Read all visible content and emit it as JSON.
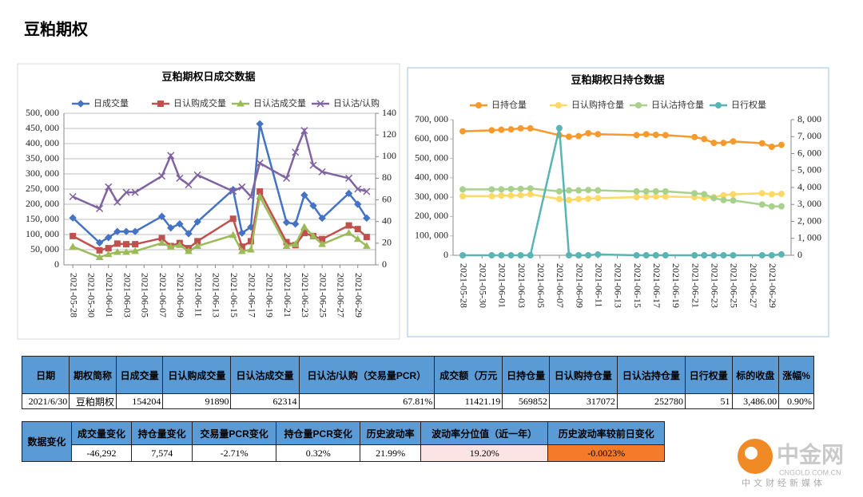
{
  "title": "豆粕期权",
  "chart_data": [
    {
      "type": "line",
      "title": "豆粕期权日成交数据",
      "grid": true,
      "legend": "top",
      "x": [
        "2021-05-28",
        "2021-05-31",
        "2021-06-01",
        "2021-06-02",
        "2021-06-03",
        "2021-06-04",
        "2021-06-07",
        "2021-06-08",
        "2021-06-09",
        "2021-06-10",
        "2021-06-11",
        "2021-06-15",
        "2021-06-16",
        "2021-06-17",
        "2021-06-18",
        "2021-06-21",
        "2021-06-22",
        "2021-06-23",
        "2021-06-24",
        "2021-06-25",
        "2021-06-28",
        "2021-06-29",
        "2021-06-30"
      ],
      "xlim": [
        "2021-05-27",
        "2021-07-01"
      ],
      "xticks": [
        "2021-05-28",
        "2021-05-30",
        "2021-06-01",
        "2021-06-03",
        "2021-06-05",
        "2021-06-07",
        "2021-06-09",
        "2021-06-11",
        "2021-06-13",
        "2021-06-15",
        "2021-06-17",
        "2021-06-19",
        "2021-06-21",
        "2021-06-23",
        "2021-06-25",
        "2021-06-27",
        "2021-06-29"
      ],
      "ylim": [
        0,
        500000
      ],
      "yticks": [
        0,
        {
          "value": 50000,
          "label": "50, 000"
        },
        {
          "value": 100000,
          "label": "100, 000"
        },
        {
          "value": 150000,
          "label": "150, 000"
        },
        {
          "value": 200000,
          "label": "200, 000"
        },
        {
          "value": 250000,
          "label": "250, 000"
        },
        {
          "value": 300000,
          "label": "300, 000"
        },
        {
          "value": 350000,
          "label": "350, 000"
        },
        {
          "value": 400000,
          "label": "400, 000"
        },
        {
          "value": 450000,
          "label": "450, 000"
        },
        {
          "value": 500000,
          "label": "500, 000"
        }
      ],
      "y2lim": [
        0,
        140
      ],
      "y2ticks": [
        0,
        20,
        40,
        60,
        80,
        100,
        120,
        140
      ],
      "series": [
        {
          "name": "日成交量",
          "color": "#4472c4",
          "marker": "diamond",
          "values": [
            155000,
            73000,
            90000,
            110000,
            110000,
            110000,
            160000,
            122000,
            135000,
            103000,
            142000,
            248000,
            105000,
            125000,
            465000,
            140000,
            135000,
            230000,
            195000,
            154000,
            236000,
            200000,
            154204
          ]
        },
        {
          "name": "日认购成交量",
          "color": "#c0504d",
          "marker": "square",
          "values": [
            95000,
            48000,
            55000,
            70000,
            68000,
            68000,
            88000,
            62000,
            72000,
            55000,
            78000,
            152000,
            60000,
            78000,
            242000,
            75000,
            65000,
            105000,
            95000,
            85000,
            130000,
            118000,
            91890
          ]
        },
        {
          "name": "日认沽成交量",
          "color": "#9bbb59",
          "marker": "triangle",
          "values": [
            60000,
            25000,
            35000,
            42000,
            42000,
            45000,
            72000,
            60000,
            65000,
            45000,
            62000,
            98000,
            45000,
            50000,
            225000,
            62000,
            68000,
            125000,
            95000,
            68000,
            105000,
            85000,
            62314
          ]
        },
        {
          "name": "日认沽/认购",
          "color": "#8064a2",
          "marker": "x",
          "axis": "y2",
          "values": [
            63,
            52,
            72,
            58,
            67,
            67,
            82,
            101,
            80,
            74,
            83,
            68,
            72,
            63,
            94,
            80,
            104,
            124,
            92,
            86,
            80,
            70,
            67.81
          ]
        }
      ]
    },
    {
      "type": "line",
      "title": "豆粕期权日持仓数据",
      "grid": false,
      "legend": "top",
      "x": [
        "2021-05-28",
        "2021-05-31",
        "2021-06-01",
        "2021-06-02",
        "2021-06-03",
        "2021-06-04",
        "2021-06-07",
        "2021-06-08",
        "2021-06-09",
        "2021-06-10",
        "2021-06-11",
        "2021-06-15",
        "2021-06-16",
        "2021-06-17",
        "2021-06-18",
        "2021-06-21",
        "2021-06-22",
        "2021-06-23",
        "2021-06-24",
        "2021-06-25",
        "2021-06-28",
        "2021-06-29",
        "2021-06-30"
      ],
      "xlim": [
        "2021-05-27",
        "2021-07-01"
      ],
      "xticks": [
        "2021-05-28",
        "2021-05-30",
        "2021-06-01",
        "2021-06-03",
        "2021-06-05",
        "2021-06-07",
        "2021-06-09",
        "2021-06-11",
        "2021-06-13",
        "2021-06-15",
        "2021-06-17",
        "2021-06-19",
        "2021-06-21",
        "2021-06-23",
        "2021-06-25",
        "2021-06-27",
        "2021-06-29"
      ],
      "ylim": [
        0,
        700000
      ],
      "yticks": [
        0,
        {
          "value": 100000,
          "label": "100, 000"
        },
        {
          "value": 200000,
          "label": "200, 000"
        },
        {
          "value": 300000,
          "label": "300, 000"
        },
        {
          "value": 400000,
          "label": "400, 000"
        },
        {
          "value": 500000,
          "label": "500, 000"
        },
        {
          "value": 600000,
          "label": "600, 000"
        },
        {
          "value": 700000,
          "label": "700, 000"
        }
      ],
      "y2lim": [
        0,
        8000
      ],
      "y2ticks": [
        0,
        {
          "value": 1000,
          "label": "1, 000"
        },
        {
          "value": 2000,
          "label": "2, 000"
        },
        {
          "value": 3000,
          "label": "3, 000"
        },
        {
          "value": 4000,
          "label": "4, 000"
        },
        {
          "value": 5000,
          "label": "5, 000"
        },
        {
          "value": 6000,
          "label": "6, 000"
        },
        {
          "value": 7000,
          "label": "7, 000"
        },
        {
          "value": 8000,
          "label": "8, 000"
        }
      ],
      "series": [
        {
          "name": "日持仓量",
          "color": "#f79a2e",
          "marker": "circle",
          "values": [
            640000,
            645000,
            648000,
            650000,
            655000,
            655000,
            620000,
            612000,
            615000,
            630000,
            625000,
            620000,
            625000,
            622000,
            620000,
            610000,
            600000,
            580000,
            580000,
            588000,
            578000,
            560000,
            569852
          ]
        },
        {
          "name": "日认购持仓量",
          "color": "#ffd966",
          "marker": "circle",
          "values": [
            305000,
            305000,
            308000,
            308000,
            310000,
            315000,
            290000,
            285000,
            290000,
            292000,
            295000,
            300000,
            302000,
            303000,
            303000,
            300000,
            295000,
            300000,
            310000,
            315000,
            320000,
            315000,
            317072
          ]
        },
        {
          "name": "日认沽持仓量",
          "color": "#a9d18e",
          "marker": "circle",
          "values": [
            340000,
            340000,
            340000,
            342000,
            343000,
            345000,
            330000,
            335000,
            335000,
            337000,
            335000,
            330000,
            330000,
            330000,
            330000,
            320000,
            315000,
            295000,
            285000,
            283000,
            262000,
            252000,
            252780
          ]
        },
        {
          "name": "日行权量",
          "color": "#5ab4b4",
          "marker": "circle",
          "axis": "y2",
          "values": [
            0,
            0,
            0,
            0,
            0,
            0,
            7500,
            0,
            0,
            0,
            50,
            0,
            0,
            0,
            0,
            0,
            0,
            0,
            0,
            0,
            0,
            0,
            51
          ]
        }
      ]
    }
  ],
  "table1": {
    "header": [
      "日期",
      "期权简称",
      "日成交量",
      "日认购成交量",
      "日认沽成交量",
      "日认沽/认购（交易量PCR）",
      "成交额（万元",
      "日持仓量",
      "日认购持仓量",
      "日认沽持仓量",
      "日行权量",
      "标的收盘",
      "涨幅%"
    ],
    "rows": [
      [
        "2021/6/30",
        "豆粕期权",
        "154204",
        "91890",
        "62314",
        "67.81%",
        "11421.19",
        "569852",
        "317072",
        "252780",
        "51",
        "3,486.00",
        "0.90%"
      ]
    ]
  },
  "table2": {
    "row_label": "数据变化",
    "header": [
      "成交量变化",
      "持仓量变化",
      "交易量PCR变化",
      "持仓量PCR变化",
      "历史波动率",
      "波动率分位值（近一年）",
      "历史波动率较前日变化"
    ],
    "rows": [
      [
        "-46,292",
        "7,574",
        "-2.71%",
        "0.32%",
        "21.99%",
        "19.20%",
        "-0.0023%"
      ]
    ]
  },
  "logo": {
    "name": "中金网",
    "url": "CNGOLD.COM.CN",
    "tagline": "中文财经新媒体"
  }
}
